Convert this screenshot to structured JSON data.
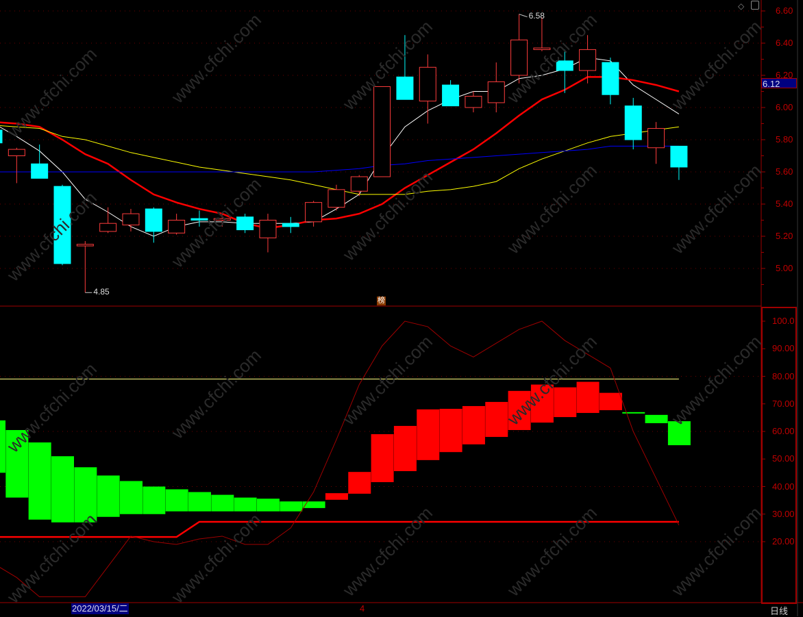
{
  "chart_data": [
    {
      "type": "candlestick",
      "ylim": [
        4.8,
        6.66
      ],
      "yticks": [
        "6.60",
        "6.40",
        "6.20",
        "6.00",
        "5.80",
        "5.60",
        "5.40",
        "5.20",
        "5.00"
      ],
      "current_price_tag": "6.12",
      "annotations": [
        {
          "index": 23,
          "label": "6.58"
        },
        {
          "index": 4,
          "label": "4.85"
        }
      ],
      "candles": [
        [
          5.86,
          5.78,
          5.88,
          5.78
        ],
        [
          5.7,
          5.74,
          5.75,
          5.53
        ],
        [
          5.65,
          5.56,
          5.77,
          5.56
        ],
        [
          5.51,
          5.03,
          5.52,
          5.02
        ],
        [
          5.14,
          5.15,
          5.17,
          4.85
        ],
        [
          5.23,
          5.28,
          5.38,
          5.22
        ],
        [
          5.27,
          5.34,
          5.37,
          5.23
        ],
        [
          5.37,
          5.23,
          5.38,
          5.16
        ],
        [
          5.22,
          5.3,
          5.34,
          5.21
        ],
        [
          5.31,
          5.3,
          5.36,
          5.26
        ],
        [
          5.3,
          5.31,
          5.34,
          5.26
        ],
        [
          5.32,
          5.24,
          5.34,
          5.22
        ],
        [
          5.19,
          5.3,
          5.34,
          5.1
        ],
        [
          5.28,
          5.26,
          5.32,
          5.22
        ],
        [
          5.29,
          5.41,
          5.42,
          5.26
        ],
        [
          5.38,
          5.49,
          5.52,
          5.36
        ],
        [
          5.48,
          5.57,
          5.58,
          5.45
        ],
        [
          5.57,
          6.13,
          6.13,
          5.57
        ],
        [
          6.19,
          6.05,
          6.45,
          6.05
        ],
        [
          6.04,
          6.25,
          6.33,
          5.9
        ],
        [
          6.14,
          6.01,
          6.17,
          6.01
        ],
        [
          6.0,
          6.07,
          6.1,
          5.97
        ],
        [
          6.03,
          6.16,
          6.28,
          5.97
        ],
        [
          6.2,
          6.42,
          6.58,
          6.15
        ],
        [
          6.36,
          6.37,
          6.56,
          6.35
        ],
        [
          6.29,
          6.23,
          6.36,
          6.09
        ],
        [
          6.23,
          6.36,
          6.45,
          6.15
        ],
        [
          6.28,
          6.08,
          6.31,
          6.02
        ],
        [
          6.01,
          5.8,
          6.06,
          5.74
        ],
        [
          5.75,
          5.87,
          5.91,
          5.65
        ],
        [
          5.76,
          5.63,
          5.76,
          5.55
        ]
      ],
      "ohlc_order": [
        "open",
        "close",
        "high",
        "low"
      ],
      "up_color": "#ff3c3c",
      "down_color": "#00ffff",
      "moving_averages": [
        {
          "color": "#ffffff",
          "values": [
            5.9,
            5.82,
            5.73,
            5.6,
            5.43,
            5.35,
            5.26,
            5.2,
            5.26,
            5.29,
            5.29,
            5.28,
            5.28,
            5.28,
            5.29,
            5.37,
            5.46,
            5.69,
            5.88,
            5.98,
            6.05,
            6.1,
            6.1,
            6.18,
            6.2,
            6.24,
            6.31,
            6.29,
            6.14,
            6.05,
            5.96
          ]
        },
        {
          "color": "#ff0000",
          "values": [
            5.91,
            5.9,
            5.88,
            5.8,
            5.71,
            5.65,
            5.55,
            5.46,
            5.41,
            5.37,
            5.34,
            5.28,
            5.25,
            5.27,
            5.3,
            5.31,
            5.34,
            5.4,
            5.5,
            5.58,
            5.66,
            5.74,
            5.84,
            5.95,
            6.05,
            6.11,
            6.19,
            6.19,
            6.17,
            6.14,
            6.1
          ]
        },
        {
          "color": "#ffff00",
          "values": [
            5.89,
            5.88,
            5.87,
            5.82,
            5.8,
            5.76,
            5.72,
            5.69,
            5.66,
            5.63,
            5.61,
            5.59,
            5.57,
            5.55,
            5.52,
            5.49,
            5.46,
            5.46,
            5.46,
            5.48,
            5.49,
            5.51,
            5.54,
            5.62,
            5.68,
            5.73,
            5.78,
            5.82,
            5.84,
            5.86,
            5.88
          ]
        },
        {
          "color": "#0000ff",
          "values": [
            5.6,
            5.6,
            5.6,
            5.6,
            5.6,
            5.6,
            5.6,
            5.6,
            5.6,
            5.6,
            5.6,
            5.6,
            5.6,
            5.6,
            5.6,
            5.61,
            5.62,
            5.64,
            5.65,
            5.67,
            5.68,
            5.69,
            5.7,
            5.71,
            5.72,
            5.73,
            5.74,
            5.76,
            5.76,
            5.76,
            5.76
          ]
        }
      ]
    },
    {
      "type": "indicator",
      "ylim": [
        0,
        103
      ],
      "yticks": [
        "100.0",
        "90.00",
        "80.00",
        "70.00",
        "60.00",
        "50.00",
        "40.00",
        "30.00",
        "20.00"
      ],
      "bands": [
        [
          "g",
          64,
          45
        ],
        [
          "g",
          60.5,
          36
        ],
        [
          "g",
          56,
          28
        ],
        [
          "g",
          51,
          27
        ],
        [
          "g",
          47,
          27
        ],
        [
          "g",
          44,
          29
        ],
        [
          "g",
          42,
          30
        ],
        [
          "g",
          40,
          30
        ],
        [
          "g",
          39,
          31
        ],
        [
          "g",
          38,
          31
        ],
        [
          "g",
          37,
          31
        ],
        [
          "g",
          36,
          31
        ],
        [
          "g",
          35.6,
          31
        ],
        [
          "g",
          34.6,
          31
        ],
        [
          "g",
          34.6,
          32.2
        ],
        [
          "r",
          37.6,
          35.2
        ],
        [
          "r",
          45.3,
          37.4
        ],
        [
          "r",
          59,
          41.6
        ],
        [
          "r",
          62,
          45.6
        ],
        [
          "r",
          68,
          49.6
        ],
        [
          "r",
          68.2,
          52.5
        ],
        [
          "r",
          69.2,
          55.3
        ],
        [
          "r",
          70.7,
          58
        ],
        [
          "r",
          74.7,
          60.5
        ],
        [
          "r",
          77,
          63.2
        ],
        [
          "r",
          76,
          65.2
        ],
        [
          "r",
          78,
          66.7
        ],
        [
          "r",
          74,
          67.7
        ],
        [
          "g",
          67,
          66.5
        ],
        [
          "g",
          66,
          63
        ],
        [
          "g",
          63.7,
          55
        ]
      ],
      "band_colors": {
        "g": "#00ff00",
        "r": "#ff0000"
      },
      "oscillator": {
        "color": "#a00000",
        "values": [
          12,
          7,
          0,
          0,
          0,
          11,
          22,
          20,
          19,
          21,
          22,
          19,
          19,
          25,
          38,
          57,
          77,
          91,
          100,
          98,
          91,
          87,
          92,
          97,
          100,
          93,
          88,
          83,
          60,
          43,
          26
        ]
      },
      "baseline": {
        "color": "#ff0000",
        "values": [
          21.7,
          21.7,
          21.7,
          21.7,
          21.7,
          21.7,
          21.7,
          21.7,
          21.7,
          27.2,
          27.2,
          27.2,
          27.2,
          27.2,
          27.2,
          27.2,
          27.2,
          27.2,
          27.2,
          27.2,
          27.2,
          27.2,
          27.2,
          27.2,
          27.2,
          27.2,
          27.2,
          27.2,
          27.2,
          27.2,
          27.2
        ]
      },
      "level_line": {
        "color": "#ffff80",
        "value": 79
      }
    }
  ],
  "footer": {
    "date": "2022/03/15/二",
    "month_marker": "4",
    "period": "日线"
  },
  "badge": "榜",
  "icons": {
    "diamond": "diamond-icon",
    "panel": "panel-toggle-icon"
  },
  "watermark": "www.cfchi.com"
}
